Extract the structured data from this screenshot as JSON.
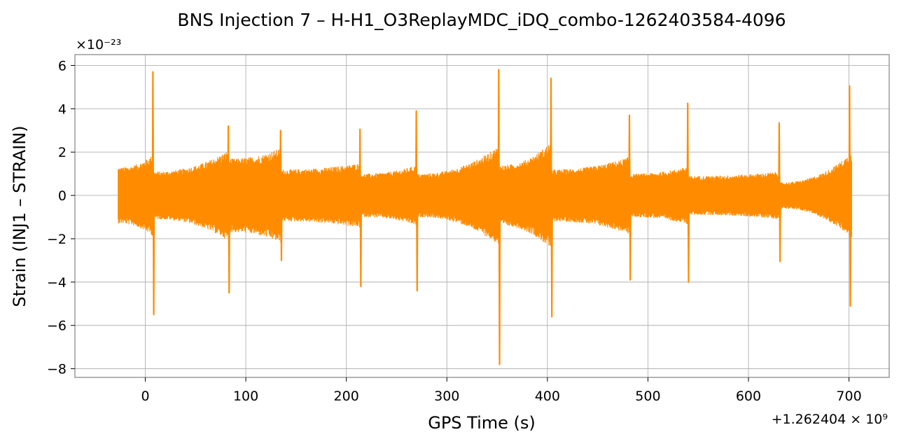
{
  "chart_data": {
    "type": "line",
    "title": "BNS Injection 7 – H-H1_O3ReplayMDC_iDQ_combo-1262403584-4096",
    "xlabel": "GPS Time (s)",
    "ylabel": "Strain (INJ1 – STRAIN)",
    "x_offset_label": "+1.262404 × 10⁹",
    "y_multiplier_label": "×10⁻²³",
    "xlim": [
      -70,
      740
    ],
    "ylim": [
      -8.4,
      6.5
    ],
    "x_ticks": [
      0,
      100,
      200,
      300,
      400,
      500,
      600,
      700
    ],
    "x_tick_labels": [
      "0",
      "100",
      "200",
      "300",
      "400",
      "500",
      "600",
      "700"
    ],
    "y_ticks": [
      -8,
      -6,
      -4,
      -2,
      0,
      2,
      4,
      6
    ],
    "y_tick_labels": [
      "−8",
      "−6",
      "−4",
      "−2",
      "0",
      "2",
      "4",
      "6"
    ],
    "grid": true,
    "line_color": "#ff8c00",
    "time_range": [
      -27,
      703
    ],
    "x_unit_note": "x values in seconds relative to the offset shown on the axis",
    "spikes": [
      {
        "x": 8,
        "max": 5.7,
        "min": -5.5
      },
      {
        "x": 83,
        "max": 3.2,
        "min": -4.5
      },
      {
        "x": 135,
        "max": 3.0,
        "min": -3.0
      },
      {
        "x": 214,
        "max": 3.05,
        "min": -4.2
      },
      {
        "x": 270,
        "max": 3.9,
        "min": -4.4
      },
      {
        "x": 352,
        "max": 5.8,
        "min": -7.8
      },
      {
        "x": 404,
        "max": 5.4,
        "min": -5.6
      },
      {
        "x": 482,
        "max": 3.7,
        "min": -3.9
      },
      {
        "x": 540,
        "max": 4.25,
        "min": -4.0
      },
      {
        "x": 631,
        "max": 3.35,
        "min": -3.05
      },
      {
        "x": 701,
        "max": 5.05,
        "min": -5.1
      }
    ],
    "envelope_segments": [
      {
        "x_start": -27,
        "x_end": 8,
        "amp_start": 1.3,
        "amp_end": 1.9
      },
      {
        "x_start": 8,
        "x_end": 83,
        "amp_start": 1.1,
        "amp_end": 2.1
      },
      {
        "x_start": 83,
        "x_end": 135,
        "amp_start": 1.7,
        "amp_end": 2.2
      },
      {
        "x_start": 135,
        "x_end": 214,
        "amp_start": 1.2,
        "amp_end": 1.5
      },
      {
        "x_start": 214,
        "x_end": 270,
        "amp_start": 1.0,
        "amp_end": 1.4
      },
      {
        "x_start": 270,
        "x_end": 352,
        "amp_start": 1.0,
        "amp_end": 2.3
      },
      {
        "x_start": 352,
        "x_end": 404,
        "amp_start": 1.4,
        "amp_end": 2.5
      },
      {
        "x_start": 404,
        "x_end": 482,
        "amp_start": 1.2,
        "amp_end": 1.8
      },
      {
        "x_start": 482,
        "x_end": 540,
        "amp_start": 1.0,
        "amp_end": 1.35
      },
      {
        "x_start": 540,
        "x_end": 631,
        "amp_start": 0.9,
        "amp_end": 1.1
      },
      {
        "x_start": 631,
        "x_end": 703,
        "amp_start": 0.6,
        "amp_end": 2.0
      }
    ]
  }
}
